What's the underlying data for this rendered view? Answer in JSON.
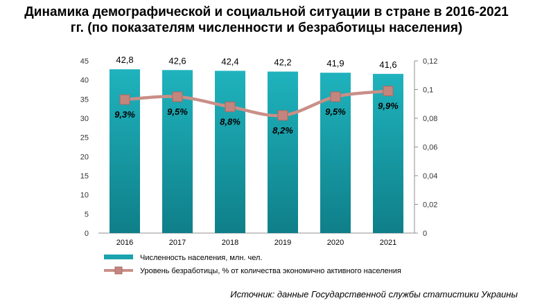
{
  "title_line1": "Динамика демографической и социальной ситуации в стране в 2016-2021",
  "title_line2": "гг. (по показателям численности и безработицы населения)",
  "source": "Источник: данные Государственной службы статистики Украины",
  "chart_data": {
    "type": "bar",
    "categories": [
      "2016",
      "2017",
      "2018",
      "2019",
      "2020",
      "2021"
    ],
    "series": [
      {
        "name": "Численность населения, млн. чел.",
        "type": "bar",
        "axis": "left",
        "values": [
          42.8,
          42.6,
          42.4,
          42.2,
          41.9,
          41.6
        ],
        "labels": [
          "42,8",
          "42,6",
          "42,4",
          "42,2",
          "41,9",
          "41,6"
        ],
        "color": "#1aa3ae"
      },
      {
        "name": "Уровень безработицы, % от количества экономично активного населения",
        "type": "line",
        "axis": "right",
        "values": [
          0.093,
          0.095,
          0.088,
          0.082,
          0.095,
          0.099
        ],
        "labels": [
          "9,3%",
          "9,5%",
          "8,8%",
          "8,2%",
          "9,5%",
          "9,9%"
        ],
        "color": "#c98f87"
      }
    ],
    "y_left": {
      "min": 0,
      "max": 45,
      "ticks": [
        "0",
        "5",
        "10",
        "15",
        "20",
        "25",
        "30",
        "35",
        "40",
        "45"
      ]
    },
    "y_right": {
      "min": 0,
      "max": 0.12,
      "ticks": [
        "0",
        "0,02",
        "0,04",
        "0,06",
        "0,08",
        "0,1",
        "0,12"
      ]
    },
    "legend": "bottom-left",
    "grid": false
  }
}
